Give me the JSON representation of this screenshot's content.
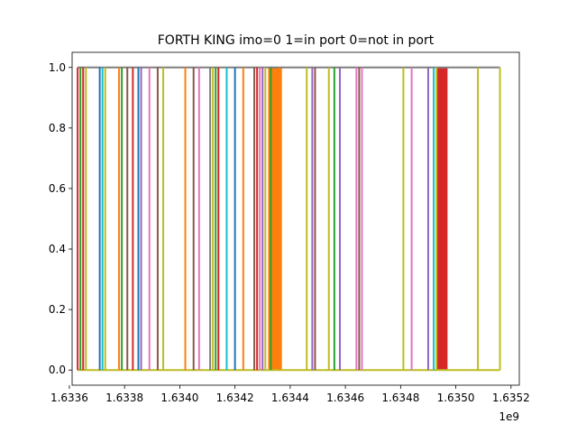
{
  "chart_data": {
    "type": "line",
    "title": "FORTH KING imo=0 1=in port 0=not in port",
    "xlabel": "",
    "ylabel": "",
    "x_offset_label": "1e9",
    "xlim": [
      1633610000.0,
      1635230000.0
    ],
    "ylim": [
      -0.05,
      1.05
    ],
    "x_ticks": [
      1633600000.0,
      1633800000.0,
      1634000000.0,
      1634200000.0,
      1634400000.0,
      1634600000.0,
      1634800000.0,
      1635000000.0,
      1635200000.0
    ],
    "x_tick_labels": [
      "1.6336",
      "1.6338",
      "1.6340",
      "1.6342",
      "1.6344",
      "1.6346",
      "1.6348",
      "1.6350",
      "1.6352"
    ],
    "y_ticks": [
      0.0,
      0.2,
      0.4,
      0.6,
      0.8,
      1.0
    ],
    "y_tick_labels": [
      "0.0",
      "0.2",
      "0.4",
      "0.6",
      "0.8",
      "1.0"
    ],
    "grid": false,
    "legend": "none",
    "colors": [
      "#1f77b4",
      "#ff7f0e",
      "#2ca02c",
      "#d62728",
      "#9467bd",
      "#8c564b",
      "#e377c2",
      "#7f7f7f",
      "#bcbd22",
      "#17becf"
    ],
    "series": [
      {
        "x": [
          1633630000.0,
          1635160000.0
        ],
        "values": [
          1,
          1
        ],
        "color": "#7f7f7f"
      },
      {
        "x": [
          1633630000.0,
          1635160000.0
        ],
        "values": [
          0,
          0
        ],
        "color": "#bcbd22"
      },
      {
        "x": [
          1633630000.0,
          1633630000.0
        ],
        "values": [
          0,
          1
        ],
        "color": "#d62728"
      },
      {
        "x": [
          1633640000.0,
          1633640000.0
        ],
        "values": [
          0,
          1
        ],
        "color": "#2ca02c"
      },
      {
        "x": [
          1633650000.0,
          1633650000.0
        ],
        "values": [
          0,
          1
        ],
        "color": "#d62728"
      },
      {
        "x": [
          1633660000.0,
          1633660000.0
        ],
        "values": [
          0,
          1
        ],
        "color": "#bcbd22"
      },
      {
        "x": [
          1633710000.0,
          1633710000.0
        ],
        "values": [
          0,
          1
        ],
        "color": "#1f77b4"
      },
      {
        "x": [
          1633720000.0,
          1633720000.0
        ],
        "values": [
          0,
          1
        ],
        "color": "#17becf"
      },
      {
        "x": [
          1633730000.0,
          1633730000.0
        ],
        "values": [
          0,
          1
        ],
        "color": "#bcbd22"
      },
      {
        "x": [
          1633780000.0,
          1633780000.0
        ],
        "values": [
          0,
          1
        ],
        "color": "#ff7f0e"
      },
      {
        "x": [
          1633790000.0,
          1633790000.0
        ],
        "values": [
          0,
          1
        ],
        "color": "#2ca02c"
      },
      {
        "x": [
          1633810000.0,
          1633810000.0
        ],
        "values": [
          0,
          1
        ],
        "color": "#8c564b"
      },
      {
        "x": [
          1633830000.0,
          1633830000.0
        ],
        "values": [
          0,
          1
        ],
        "color": "#d62728"
      },
      {
        "x": [
          1633850000.0,
          1633850000.0
        ],
        "values": [
          0,
          1
        ],
        "color": "#1f77b4"
      },
      {
        "x": [
          1633860000.0,
          1633860000.0
        ],
        "values": [
          0,
          1
        ],
        "color": "#9467bd"
      },
      {
        "x": [
          1633890000.0,
          1633890000.0
        ],
        "values": [
          0,
          1
        ],
        "color": "#e377c2"
      },
      {
        "x": [
          1633920000.0,
          1633920000.0
        ],
        "values": [
          0,
          1
        ],
        "color": "#8c564b"
      },
      {
        "x": [
          1633940000.0,
          1633940000.0
        ],
        "values": [
          0,
          1
        ],
        "color": "#bcbd22"
      },
      {
        "x": [
          1634020000.0,
          1634020000.0
        ],
        "values": [
          0,
          1
        ],
        "color": "#ff7f0e"
      },
      {
        "x": [
          1634050000.0,
          1634050000.0
        ],
        "values": [
          0,
          1
        ],
        "color": "#8c564b"
      },
      {
        "x": [
          1634070000.0,
          1634070000.0
        ],
        "values": [
          0,
          1
        ],
        "color": "#e377c2"
      },
      {
        "x": [
          1634110000.0,
          1634110000.0
        ],
        "values": [
          0,
          1
        ],
        "color": "#7f7f7f"
      },
      {
        "x": [
          1634120000.0,
          1634120000.0
        ],
        "values": [
          0,
          1
        ],
        "color": "#bcbd22"
      },
      {
        "x": [
          1634130000.0,
          1634130000.0
        ],
        "values": [
          0,
          1
        ],
        "color": "#2ca02c"
      },
      {
        "x": [
          1634140000.0,
          1634140000.0
        ],
        "values": [
          0,
          1
        ],
        "color": "#d62728"
      },
      {
        "x": [
          1634170000.0,
          1634170000.0
        ],
        "values": [
          0,
          1
        ],
        "color": "#17becf"
      },
      {
        "x": [
          1634200000.0,
          1634200000.0
        ],
        "values": [
          0,
          1
        ],
        "color": "#1f77b4"
      },
      {
        "x": [
          1634230000.0,
          1634230000.0
        ],
        "values": [
          0,
          1
        ],
        "color": "#ff7f0e"
      },
      {
        "x": [
          1634270000.0,
          1634270000.0
        ],
        "values": [
          0,
          1
        ],
        "color": "#8c564b"
      },
      {
        "x": [
          1634280000.0,
          1634280000.0
        ],
        "values": [
          0,
          1
        ],
        "color": "#d62728"
      },
      {
        "x": [
          1634290000.0,
          1634290000.0
        ],
        "values": [
          0,
          1
        ],
        "color": "#e377c2"
      },
      {
        "x": [
          1634300000.0,
          1634300000.0
        ],
        "values": [
          0,
          1
        ],
        "color": "#9467bd"
      },
      {
        "x": [
          1634310000.0,
          1634310000.0
        ],
        "values": [
          0,
          1
        ],
        "color": "#bcbd22"
      },
      {
        "x": [
          1634330000.0,
          1634330000.0
        ],
        "values": [
          0,
          1
        ],
        "color": "#2ca02c"
      },
      {
        "x": [
          1634360000.0,
          1634360000.0
        ],
        "values": [
          0,
          1
        ],
        "color": "#ff7f0e"
      },
      {
        "x": [
          1634460000.0,
          1634460000.0
        ],
        "values": [
          0,
          1
        ],
        "color": "#bcbd22"
      },
      {
        "x": [
          1634480000.0,
          1634480000.0
        ],
        "values": [
          0,
          1
        ],
        "color": "#9467bd"
      },
      {
        "x": [
          1634490000.0,
          1634490000.0
        ],
        "values": [
          0,
          1
        ],
        "color": "#8c564b"
      },
      {
        "x": [
          1634540000.0,
          1634540000.0
        ],
        "values": [
          0,
          1
        ],
        "color": "#bcbd22"
      },
      {
        "x": [
          1634560000.0,
          1634560000.0
        ],
        "values": [
          0,
          1
        ],
        "color": "#2ca02c"
      },
      {
        "x": [
          1634580000.0,
          1634580000.0
        ],
        "values": [
          0,
          1
        ],
        "color": "#9467bd"
      },
      {
        "x": [
          1634640000.0,
          1634640000.0
        ],
        "values": [
          0,
          1
        ],
        "color": "#e377c2"
      },
      {
        "x": [
          1634650000.0,
          1634650000.0
        ],
        "values": [
          0,
          1
        ],
        "color": "#8c564b"
      },
      {
        "x": [
          1634660000.0,
          1634660000.0
        ],
        "values": [
          0,
          1
        ],
        "color": "#e377c2"
      },
      {
        "x": [
          1634810000.0,
          1634810000.0
        ],
        "values": [
          0,
          1
        ],
        "color": "#bcbd22"
      },
      {
        "x": [
          1634840000.0,
          1634840000.0
        ],
        "values": [
          0,
          1
        ],
        "color": "#e377c2"
      },
      {
        "x": [
          1634900000.0,
          1634900000.0
        ],
        "values": [
          0,
          1
        ],
        "color": "#9467bd"
      },
      {
        "x": [
          1634920000.0,
          1634920000.0
        ],
        "values": [
          0,
          1
        ],
        "color": "#17becf"
      },
      {
        "x": [
          1634930000.0,
          1634930000.0
        ],
        "values": [
          0,
          1
        ],
        "color": "#bcbd22"
      },
      {
        "x": [
          1635080000.0,
          1635080000.0
        ],
        "values": [
          0,
          1
        ],
        "color": "#bcbd22"
      },
      {
        "x": [
          1635160000.0,
          1635160000.0
        ],
        "values": [
          0,
          1
        ],
        "color": "#bcbd22"
      }
    ],
    "filled_bands": [
      {
        "x": [
          1634320000.0,
          1634370000.0
        ],
        "color": "#ff7f0e"
      },
      {
        "x": [
          1634930000.0,
          1634970000.0
        ],
        "color": "#d62728"
      }
    ]
  }
}
